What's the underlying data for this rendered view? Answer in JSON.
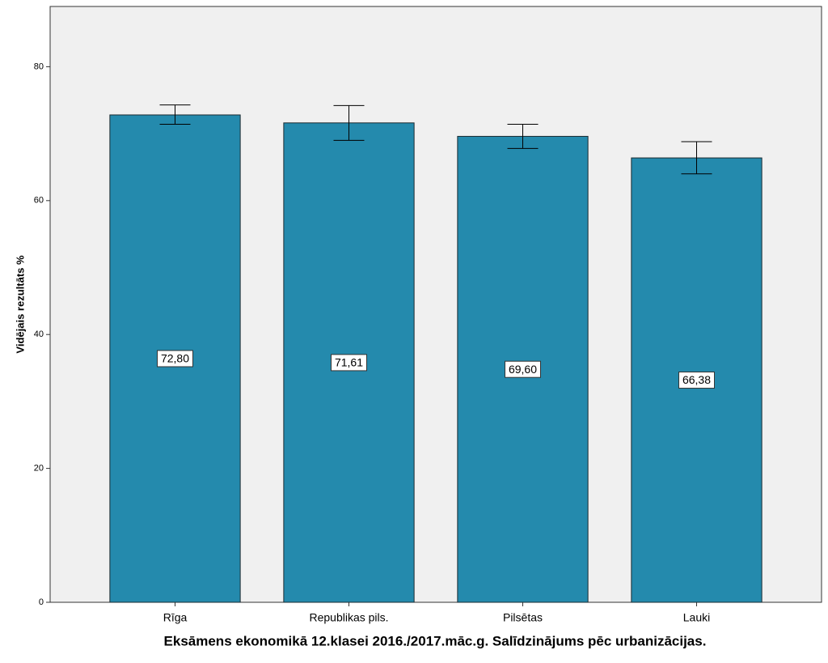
{
  "chart_data": {
    "type": "bar",
    "title": "Eksāmens ekonomikā 12.klasei 2016./2017.māc.g. Salīdzinājums pēc urbanizācijas.",
    "y_label": "Vidējais rezultāts %",
    "categories": [
      "Rīga",
      "Republikas pils.",
      "Pilsētas",
      "Lauki"
    ],
    "values": [
      72.8,
      71.61,
      69.6,
      66.38
    ],
    "value_labels": [
      "72,80",
      "71,61",
      "69,60",
      "66,38"
    ],
    "error_low": [
      71.4,
      69.0,
      67.8,
      64.0
    ],
    "error_high": [
      74.3,
      74.2,
      71.4,
      68.8
    ],
    "color": "#248aad",
    "ylim": [
      0,
      89
    ],
    "yticks": [
      0,
      20,
      40,
      60,
      80
    ]
  }
}
